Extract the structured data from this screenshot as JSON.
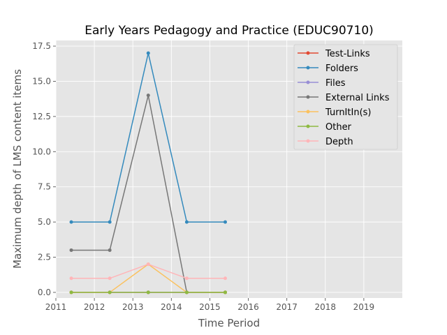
{
  "chart_data": {
    "type": "line",
    "title": "Early Years Pedagogy and Practice (EDUC90710)",
    "xlabel": "Time Period",
    "ylabel": "Maximum depth of LMS content items",
    "xlim": [
      2011,
      2020
    ],
    "ylim": [
      -0.4,
      17.9
    ],
    "x_ticks": [
      2011,
      2012,
      2013,
      2014,
      2015,
      2016,
      2017,
      2018,
      2019
    ],
    "x_tick_labels": [
      "2011",
      "2012",
      "2013",
      "2014",
      "2015",
      "2016",
      "2017",
      "2018",
      "2019"
    ],
    "y_ticks": [
      0,
      2.5,
      5,
      7.5,
      10,
      12.5,
      15,
      17.5
    ],
    "y_tick_labels": [
      "0.0",
      "2.5",
      "5.0",
      "7.5",
      "10.0",
      "12.5",
      "15.0",
      "17.5"
    ],
    "grid": true,
    "legend_position": "top-right",
    "x": [
      2011.4,
      2012.4,
      2013.4,
      2014.4,
      2015.4
    ],
    "series": [
      {
        "name": "Test-Links",
        "color": "#E24A33",
        "values": [
          0,
          0,
          0,
          0,
          0
        ]
      },
      {
        "name": "Folders",
        "color": "#348ABD",
        "values": [
          5,
          5,
          17,
          5,
          5
        ]
      },
      {
        "name": "Files",
        "color": "#988ED5",
        "values": [
          0,
          0,
          0,
          0,
          0
        ]
      },
      {
        "name": "External Links",
        "color": "#777777",
        "values": [
          3,
          3,
          14,
          0,
          0
        ]
      },
      {
        "name": "TurnItIn(s)",
        "color": "#FBC15E",
        "values": [
          0,
          0,
          2,
          0,
          0
        ]
      },
      {
        "name": "Other",
        "color": "#8EBA42",
        "values": [
          0,
          0,
          0,
          0,
          0
        ]
      },
      {
        "name": "Depth",
        "color": "#FFB5B8",
        "values": [
          1,
          1,
          2,
          1,
          1
        ]
      }
    ]
  }
}
